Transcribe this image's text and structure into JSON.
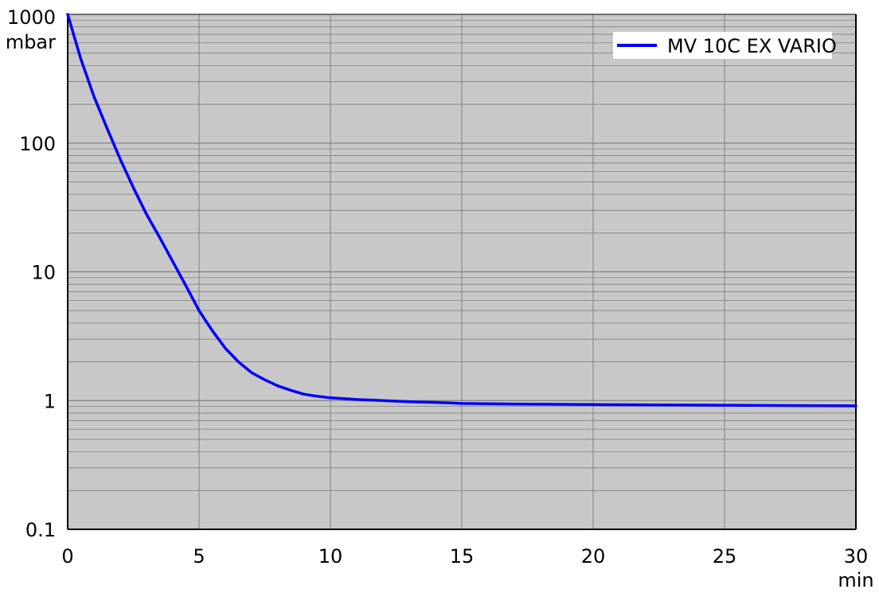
{
  "chart_data": {
    "type": "line",
    "x_unit": "min",
    "y_unit": "mbar",
    "xlim": [
      0,
      30
    ],
    "ylim": [
      0.1,
      1000
    ],
    "y_scale": "log",
    "grid": true,
    "legend_position": "top-right",
    "x_ticks": [
      "0",
      "5",
      "10",
      "15",
      "20",
      "25",
      "30"
    ],
    "y_ticks": [
      "1000",
      "100",
      "10",
      "1",
      "0.1"
    ],
    "series": [
      {
        "name": "MV 10C EX VARIO",
        "color": "#0000ff",
        "x": [
          0,
          0.5,
          1,
          1.5,
          2,
          2.5,
          3,
          3.5,
          4,
          4.5,
          5,
          5.5,
          6,
          6.5,
          7,
          7.5,
          8,
          8.5,
          9,
          9.5,
          10,
          11,
          12,
          13,
          13.8,
          14.5,
          15,
          17,
          20,
          25,
          30
        ],
        "y": [
          1000,
          450,
          230,
          130,
          75,
          45,
          28,
          18.5,
          12,
          7.8,
          5,
          3.5,
          2.55,
          2.0,
          1.65,
          1.45,
          1.3,
          1.2,
          1.12,
          1.08,
          1.05,
          1.02,
          1.0,
          0.98,
          0.97,
          0.96,
          0.95,
          0.94,
          0.93,
          0.92,
          0.91
        ]
      }
    ],
    "plot_background": "#c8c8c8",
    "grid_color": "#808080"
  }
}
